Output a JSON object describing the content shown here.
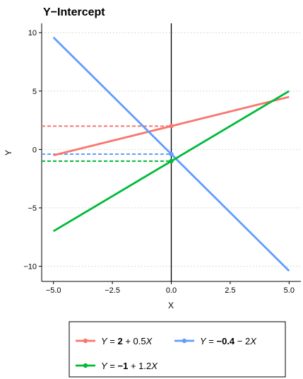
{
  "chart_data": {
    "type": "line",
    "title": "Y−Intercept",
    "xlabel": "X",
    "ylabel": "Y",
    "xlim": [
      -5.5,
      5.5
    ],
    "ylim": [
      -11.3,
      10.8
    ],
    "x_ticks": [
      -5,
      -2.5,
      0,
      2.5,
      5
    ],
    "x_tick_labels": [
      "−5.0",
      "−2.5",
      "0.0",
      "2.5",
      "5.0"
    ],
    "y_ticks": [
      -10,
      -5,
      0,
      5,
      10
    ],
    "y_tick_labels": [
      "−10",
      "−5",
      "0",
      "5",
      "10"
    ],
    "grid_y_dotted": true,
    "vertical_line_x": 0,
    "series": [
      {
        "intercept": 2,
        "slope": 0.5,
        "x": [
          -5,
          5
        ],
        "y": [
          -0.5,
          4.5
        ],
        "color": "#F8766D",
        "legend": {
          "lhs": "Y",
          "eq": " = ",
          "bold": "2",
          "rest": " + 0.5",
          "var": "X"
        }
      },
      {
        "intercept": -0.4,
        "slope": -2,
        "x": [
          -5,
          5
        ],
        "y": [
          9.6,
          -10.4
        ],
        "color": "#619CFF",
        "legend": {
          "lhs": "Y",
          "eq": " = ",
          "bold": "−0.4",
          "rest": " − 2",
          "var": "X"
        }
      },
      {
        "intercept": -1,
        "slope": 1.2,
        "x": [
          -5,
          5
        ],
        "y": [
          -7,
          5
        ],
        "color": "#00BA38",
        "legend": {
          "lhs": "Y",
          "eq": " = ",
          "bold": "−1",
          "rest": " + 1.2",
          "var": "X"
        }
      }
    ],
    "legend_position": "bottom"
  }
}
